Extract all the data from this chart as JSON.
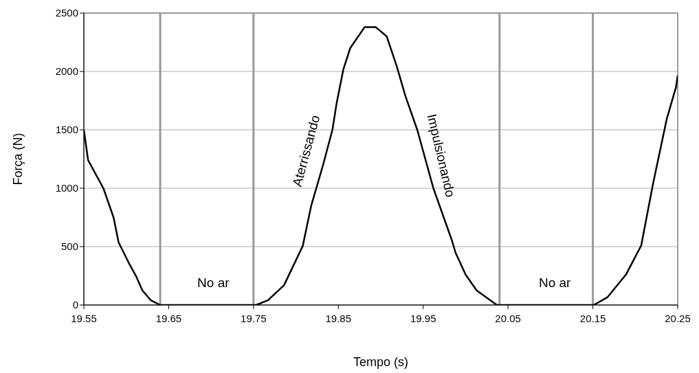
{
  "chart_data": {
    "type": "line",
    "xlabel": "Tempo (s)",
    "ylabel": "Força (N)",
    "xlim": [
      19.55,
      20.25
    ],
    "xticks": [
      19.55,
      19.65,
      19.75,
      19.85,
      19.95,
      20.05,
      20.15,
      20.25
    ],
    "ylim": [
      0,
      2500
    ],
    "yticks": [
      0,
      500,
      1000,
      1500,
      2000,
      2500
    ],
    "grid": "y",
    "legend": false,
    "marker": "none",
    "line_style": "solid",
    "series": [
      {
        "color": "#000000",
        "x": [
          19.55,
          19.555,
          19.573,
          19.585,
          19.591,
          19.603,
          19.612,
          19.619,
          19.629,
          19.64,
          19.7,
          19.753,
          19.767,
          19.786,
          19.808,
          19.818,
          19.832,
          19.843,
          19.848,
          19.856,
          19.864,
          19.881,
          19.894,
          19.907,
          19.919,
          19.929,
          19.943,
          19.962,
          19.984,
          19.988,
          20.0,
          20.013,
          20.032,
          20.037,
          20.1,
          20.151,
          20.167,
          20.189,
          20.207,
          20.221,
          20.237,
          20.248,
          20.25
        ],
        "values": [
          1500,
          1240,
          1000,
          750,
          535,
          360,
          240,
          125,
          40,
          0,
          0,
          0,
          40,
          170,
          505,
          850,
          1200,
          1500,
          1730,
          2020,
          2200,
          2380,
          2380,
          2300,
          2040,
          1790,
          1500,
          1000,
          550,
          450,
          260,
          125,
          25,
          0,
          0,
          0,
          65,
          260,
          510,
          1040,
          1590,
          1865,
          1965
        ]
      }
    ],
    "ref_lines": [
      {
        "axis": "x",
        "value": 19.64,
        "color": "#999999"
      },
      {
        "axis": "x",
        "value": 19.75,
        "color": "#999999"
      },
      {
        "axis": "x",
        "value": 20.04,
        "color": "#999999"
      },
      {
        "axis": "x",
        "value": 20.15,
        "color": "#999999"
      }
    ],
    "annotations": [
      "No ar",
      "Aterrissando",
      "Impulsionando",
      "No ar"
    ]
  }
}
